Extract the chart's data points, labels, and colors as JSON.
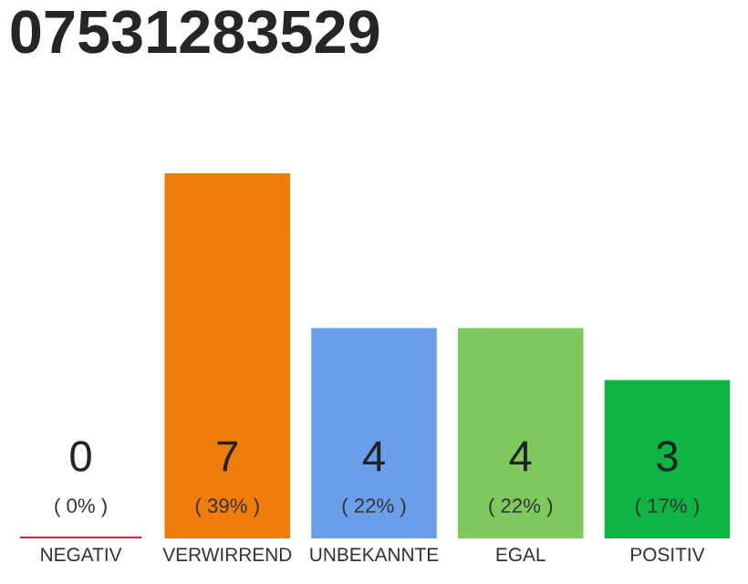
{
  "chart_data": {
    "type": "bar",
    "title": "07531283529",
    "categories": [
      "NEGATIV",
      "VERWIRREND",
      "UNBEKANNTE",
      "EGAL",
      "POSITIV"
    ],
    "values": [
      0,
      7,
      4,
      4,
      3
    ],
    "colors": [
      "#e0203c",
      "#f07d0a",
      "#6a9eeb",
      "#7dc95e",
      "#0fb443"
    ],
    "ylim": [
      0,
      7
    ],
    "tick_labels": "x",
    "data_labels": true,
    "grid": false,
    "legend": false,
    "annotations": [
      "( 0% )",
      "( 39% )",
      "( 22% )",
      "( 22% )",
      "( 17% )"
    ]
  }
}
